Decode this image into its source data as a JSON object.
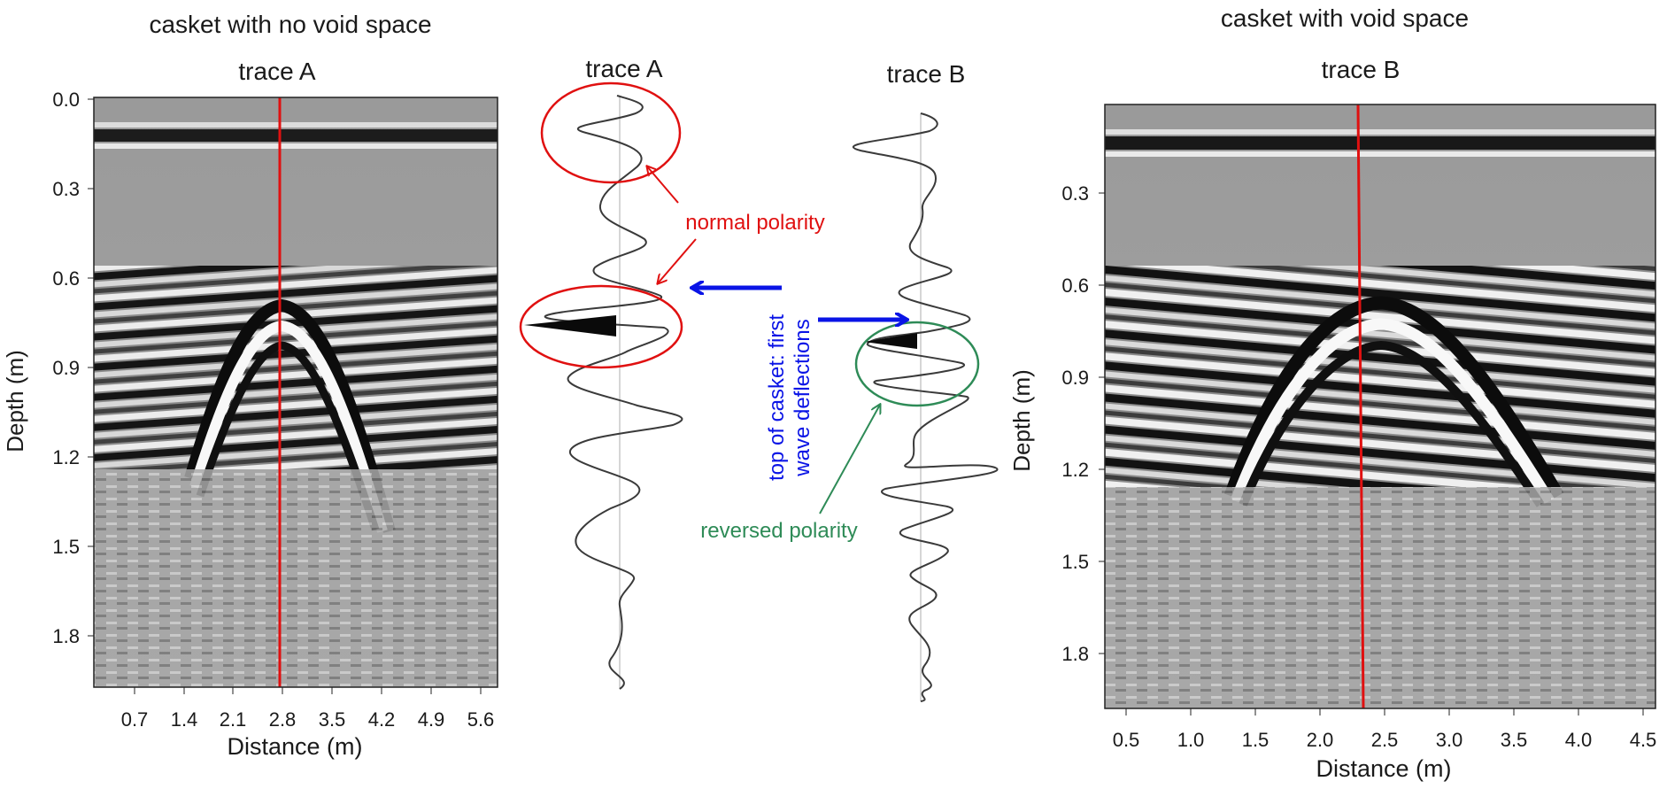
{
  "left_panel": {
    "heading": "casket with no void space",
    "trace_label": "trace A",
    "y_axis_label": "Depth (m)",
    "x_axis_label": "Distance (m)",
    "y_ticks": [
      "0.0",
      "0.3",
      "0.6",
      "0.9",
      "1.2",
      "1.5",
      "1.8"
    ],
    "x_ticks": [
      "0.7",
      "1.4",
      "2.1",
      "2.8",
      "3.5",
      "4.2",
      "4.9",
      "5.6"
    ]
  },
  "right_panel": {
    "heading": "casket with void space",
    "trace_label": "trace B",
    "y_axis_label": "Depth (m)",
    "x_axis_label": "Distance (m)",
    "y_ticks": [
      "0.3",
      "0.6",
      "0.9",
      "1.2",
      "1.5",
      "1.8"
    ],
    "x_ticks": [
      "0.5",
      "1.0",
      "1.5",
      "2.0",
      "2.5",
      "3.0",
      "3.5",
      "4.0",
      "4.5"
    ]
  },
  "center": {
    "trace_a_title": "trace A",
    "trace_b_title": "trace B",
    "normal_polarity_label": "normal polarity",
    "reversed_polarity_label": "reversed polarity",
    "top_of_casket_line1": "top of casket: first",
    "top_of_casket_line2": "wave deflections"
  },
  "colors": {
    "marker_line": "#e01010",
    "normal_annotation": "#e01010",
    "reversed_annotation": "#2e8b57",
    "arrow_blue": "#0a14e6"
  }
}
